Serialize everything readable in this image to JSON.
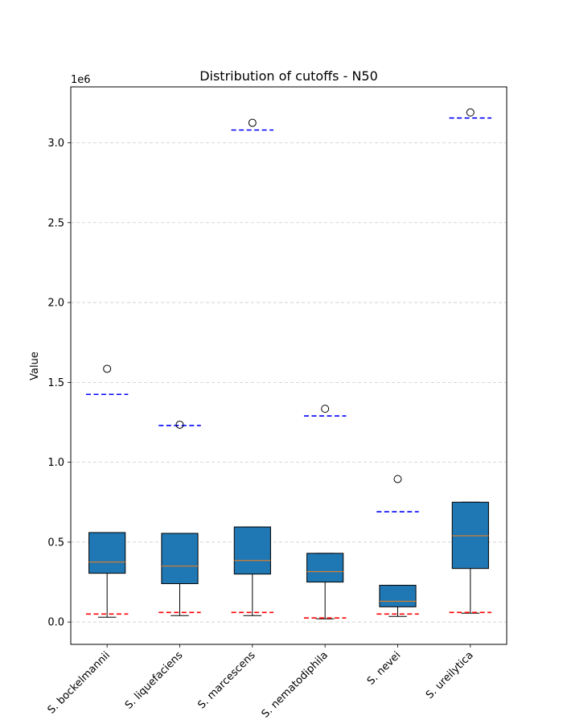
{
  "chart_data": {
    "type": "box",
    "title": "Distribution of cutoffs - N50",
    "xlabel": "",
    "ylabel": "Value",
    "y_offset_label": "1e6",
    "ylim": [
      -140000,
      3350000
    ],
    "y_ticks": [
      0,
      500000,
      1000000,
      1500000,
      2000000,
      2500000,
      3000000
    ],
    "y_tick_labels": [
      "0.0",
      "0.5",
      "1.0",
      "1.5",
      "2.0",
      "2.5",
      "3.0"
    ],
    "grid": "horizontal dashed",
    "categories": [
      "S. bockelmannii",
      "S. liquefaciens",
      "S. marcescens",
      "S. nematodiphila",
      "S. nevei",
      "S. ureilytica"
    ],
    "boxes": [
      {
        "whisker_low": 30000,
        "q1": 305000,
        "median": 375000,
        "q3": 560000,
        "whisker_high": 560000,
        "fliers": [
          1585000
        ],
        "upper_line": 1425000,
        "lower_line": 50000
      },
      {
        "whisker_low": 40000,
        "q1": 240000,
        "median": 350000,
        "q3": 555000,
        "whisker_high": 555000,
        "fliers": [
          1235000
        ],
        "upper_line": 1230000,
        "lower_line": 60000
      },
      {
        "whisker_low": 40000,
        "q1": 300000,
        "median": 385000,
        "q3": 595000,
        "whisker_high": 595000,
        "fliers": [
          3125000
        ],
        "upper_line": 3080000,
        "lower_line": 60000
      },
      {
        "whisker_low": 20000,
        "q1": 250000,
        "median": 315000,
        "q3": 430000,
        "whisker_high": 430000,
        "fliers": [
          1335000
        ],
        "upper_line": 1290000,
        "lower_line": 25000
      },
      {
        "whisker_low": 35000,
        "q1": 95000,
        "median": 130000,
        "q3": 230000,
        "whisker_high": 230000,
        "fliers": [
          895000
        ],
        "upper_line": 690000,
        "lower_line": 50000
      },
      {
        "whisker_low": 55000,
        "q1": 335000,
        "median": 540000,
        "q3": 750000,
        "whisker_high": 750000,
        "fliers": [
          3190000
        ],
        "upper_line": 3155000,
        "lower_line": 60000
      }
    ],
    "colors": {
      "box_fill": "#1f77b4",
      "median": "#ff7f0e",
      "upper_line": "#0000ff",
      "lower_line": "#ff0000",
      "grid": "#cccccc"
    }
  }
}
